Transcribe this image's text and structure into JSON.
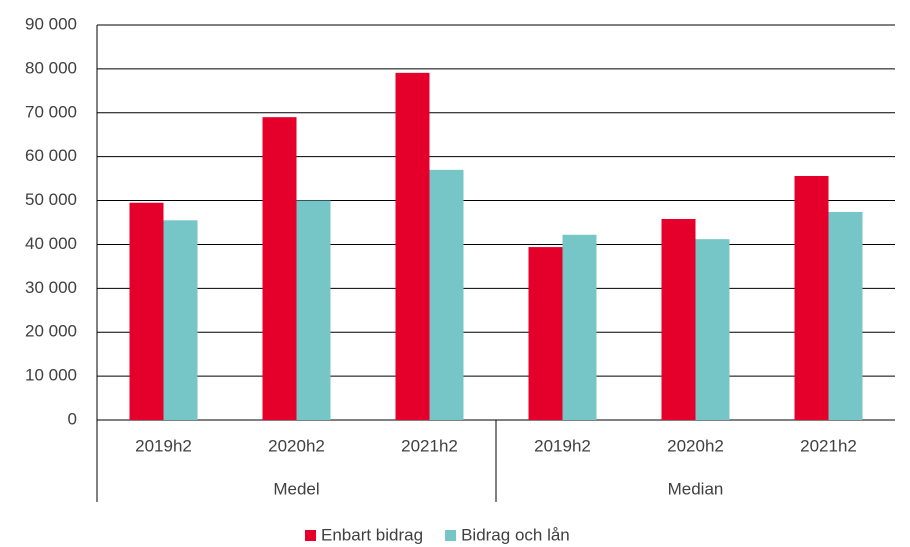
{
  "chart_data": {
    "type": "bar",
    "groups": [
      "Medel",
      "Median"
    ],
    "categories": [
      "2019h2",
      "2020h2",
      "2021h2",
      "2019h2",
      "2020h2",
      "2021h2"
    ],
    "series": [
      {
        "name": "Enbart bidrag",
        "color": "#e4002b",
        "values": [
          49500,
          69000,
          79100,
          39400,
          45800,
          55600
        ]
      },
      {
        "name": "Bidrag och lån",
        "color": "#76c5c7",
        "values": [
          45500,
          50000,
          57000,
          42200,
          41200,
          47400
        ]
      }
    ],
    "ylim": [
      0,
      90000
    ],
    "yticks": [
      0,
      {
        "value": 10000,
        "label": "10 000"
      },
      {
        "value": 20000,
        "label": "20 000"
      },
      {
        "value": 30000,
        "label": "30 000"
      },
      {
        "value": 40000,
        "label": "40 000"
      },
      {
        "value": 50000,
        "label": "50 000"
      },
      {
        "value": 60000,
        "label": "60 000"
      },
      {
        "value": 70000,
        "label": "70 000"
      },
      {
        "value": 80000,
        "label": "80 000"
      },
      {
        "value": 90000,
        "label": "90 000"
      }
    ],
    "grid": true,
    "legend": "bottom"
  }
}
